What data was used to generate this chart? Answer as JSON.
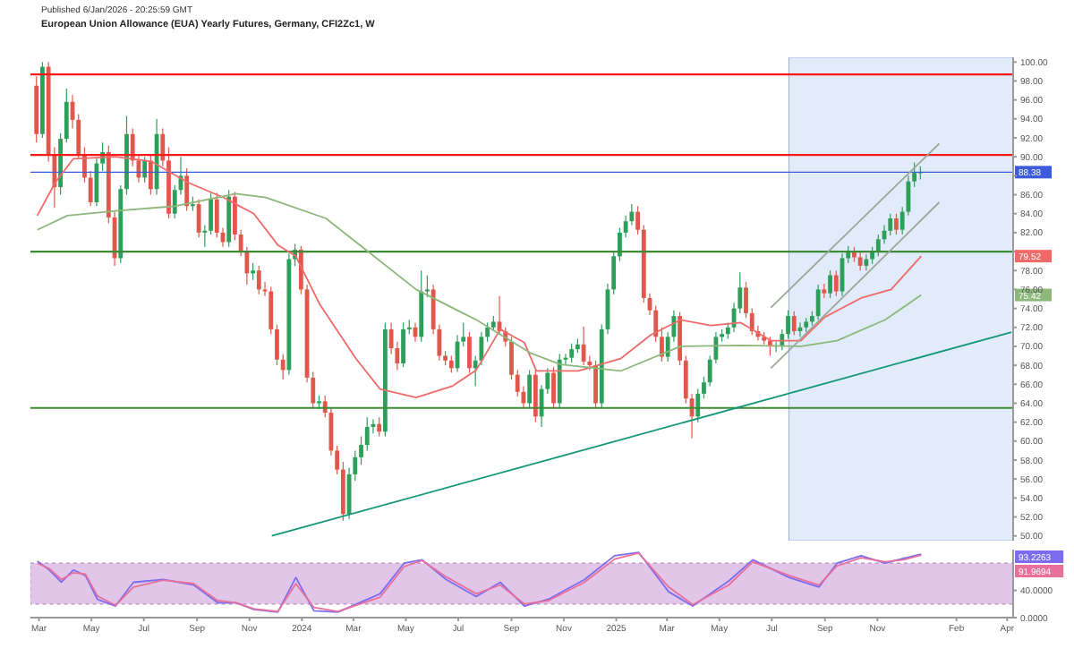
{
  "chart_data": [
    {
      "type": "candlestick",
      "title": "European Union Allowance (EUA) Yearly Futures, Germany, CFI2Zc1, W",
      "x": [
        "2023-02-27",
        "2023-03-06",
        "2023-03-13",
        "2023-03-20",
        "2023-03-27",
        "2023-04-03",
        "2023-04-10",
        "2023-04-17",
        "2023-04-24",
        "2023-05-01",
        "2023-05-08",
        "2023-05-15",
        "2023-05-22",
        "2023-05-29",
        "2023-06-05",
        "2023-06-12",
        "2023-06-19",
        "2023-06-26",
        "2023-07-03",
        "2023-07-10",
        "2023-07-17",
        "2023-07-24",
        "2023-07-31",
        "2023-08-07",
        "2023-08-14",
        "2023-08-21",
        "2023-08-28",
        "2023-09-04",
        "2023-09-11",
        "2023-09-18",
        "2023-09-25",
        "2023-10-02",
        "2023-10-09",
        "2023-10-16",
        "2023-10-23",
        "2023-10-30",
        "2023-11-06",
        "2023-11-13",
        "2023-11-20",
        "2023-11-27",
        "2023-12-04",
        "2023-12-11",
        "2023-12-18",
        "2023-12-25",
        "2024-01-01",
        "2024-01-08",
        "2024-01-15",
        "2024-01-22",
        "2024-01-29",
        "2024-02-05",
        "2024-02-12",
        "2024-02-19",
        "2024-02-26",
        "2024-03-04",
        "2024-03-11",
        "2024-03-18",
        "2024-03-25",
        "2024-04-01",
        "2024-04-08",
        "2024-04-15",
        "2024-04-22",
        "2024-04-29",
        "2024-05-06",
        "2024-05-13",
        "2024-05-20",
        "2024-05-27",
        "2024-06-03",
        "2024-06-10",
        "2024-06-17",
        "2024-06-24",
        "2024-07-01",
        "2024-07-08",
        "2024-07-15",
        "2024-07-22",
        "2024-07-29",
        "2024-08-05",
        "2024-08-12",
        "2024-08-19",
        "2024-08-26",
        "2024-09-02",
        "2024-09-09",
        "2024-09-16",
        "2024-09-23",
        "2024-09-30",
        "2024-10-07",
        "2024-10-14",
        "2024-10-21",
        "2024-10-28",
        "2024-11-04",
        "2024-11-11",
        "2024-11-18",
        "2024-11-25",
        "2024-12-02",
        "2024-12-09",
        "2024-12-16",
        "2024-12-23",
        "2024-12-30",
        "2025-01-06",
        "2025-01-13",
        "2025-01-20",
        "2025-01-27",
        "2025-02-03",
        "2025-02-10",
        "2025-02-17",
        "2025-02-24",
        "2025-03-03",
        "2025-03-10",
        "2025-03-17",
        "2025-03-24",
        "2025-03-31",
        "2025-04-07",
        "2025-04-14",
        "2025-04-21",
        "2025-04-28",
        "2025-05-05",
        "2025-05-12",
        "2025-05-19",
        "2025-05-26",
        "2025-06-02",
        "2025-06-09",
        "2025-06-16",
        "2025-06-23",
        "2025-06-30",
        "2025-07-07",
        "2025-07-14",
        "2025-07-21",
        "2025-07-28",
        "2025-08-04",
        "2025-08-11",
        "2025-08-18",
        "2025-08-25",
        "2025-09-01",
        "2025-09-08",
        "2025-09-15",
        "2025-09-22",
        "2025-09-29",
        "2025-10-06",
        "2025-10-13",
        "2025-10-20",
        "2025-10-27",
        "2025-11-03",
        "2025-11-10",
        "2025-11-17",
        "2025-11-24",
        "2025-12-01",
        "2025-12-08",
        "2025-12-15",
        "2025-12-22"
      ],
      "ohlc": [
        [
          97.5,
          98.5,
          91.5,
          92.4
        ],
        [
          92.4,
          100,
          92,
          99.5
        ],
        [
          99.5,
          100,
          89.5,
          90.2
        ],
        [
          90.2,
          91,
          84.6,
          86.8
        ],
        [
          86.8,
          92.5,
          86,
          91.9
        ],
        [
          91.9,
          97.2,
          91.5,
          95.8
        ],
        [
          95.8,
          96.5,
          93,
          93.9
        ],
        [
          93.9,
          94.5,
          89.8,
          90.2
        ],
        [
          90.2,
          91,
          87.3,
          87.8
        ],
        [
          87.8,
          88.5,
          84.8,
          85.2
        ],
        [
          85.2,
          89.8,
          84.8,
          89.3
        ],
        [
          89.3,
          91.5,
          88.5,
          90.5
        ],
        [
          90.5,
          91.2,
          83,
          83.6
        ],
        [
          83.6,
          84.2,
          78.5,
          79.3
        ],
        [
          79.3,
          87,
          78.8,
          86.6
        ],
        [
          86.6,
          94.3,
          86,
          92.4
        ],
        [
          92.4,
          93,
          89,
          89.6
        ],
        [
          89.6,
          90.3,
          87.3,
          87.8
        ],
        [
          87.8,
          90,
          87.3,
          89.6
        ],
        [
          89.6,
          90.2,
          86,
          86.6
        ],
        [
          86.6,
          94,
          86,
          92.4
        ],
        [
          92.4,
          93,
          89,
          89.6
        ],
        [
          89.6,
          91,
          83.5,
          84
        ],
        [
          84,
          87,
          83.5,
          86.5
        ],
        [
          86.5,
          90,
          86,
          88
        ],
        [
          88,
          88.8,
          84.3,
          84.8
        ],
        [
          84.8,
          85.8,
          84.3,
          85
        ],
        [
          85,
          85.5,
          81.5,
          82
        ],
        [
          82,
          82.8,
          80.5,
          82.2
        ],
        [
          82.2,
          86.2,
          81.8,
          85.5
        ],
        [
          85.5,
          86.2,
          81.5,
          82
        ],
        [
          82,
          82.5,
          80.5,
          81
        ],
        [
          81,
          86.5,
          80.5,
          85.8
        ],
        [
          85.8,
          86.3,
          81.2,
          81.8
        ],
        [
          81.8,
          82.3,
          79.5,
          80
        ],
        [
          80,
          80.5,
          76.5,
          77.7
        ],
        [
          77.7,
          78.8,
          77,
          78
        ],
        [
          78,
          78.5,
          75.5,
          76
        ],
        [
          76,
          76.8,
          75.3,
          75.8
        ],
        [
          75.8,
          76.3,
          71.3,
          71.8
        ],
        [
          71.8,
          72.3,
          68,
          68.6
        ],
        [
          68.6,
          69.2,
          66.5,
          67.5
        ],
        [
          67.5,
          79.8,
          67,
          79.2
        ],
        [
          79.2,
          80.8,
          78.5,
          80.2
        ],
        [
          80.2,
          80.6,
          75.5,
          76
        ],
        [
          76,
          76.5,
          66.2,
          66.7
        ],
        [
          66.7,
          67.3,
          63.5,
          64
        ],
        [
          64,
          64.8,
          63.4,
          64.2
        ],
        [
          64.2,
          64.8,
          62.5,
          63
        ],
        [
          63,
          63.5,
          58.5,
          59
        ],
        [
          59,
          59.5,
          56.5,
          57
        ],
        [
          57,
          57.8,
          51.6,
          52.3
        ],
        [
          52.3,
          57.2,
          51.8,
          56.5
        ],
        [
          56.5,
          59,
          55.8,
          58.3
        ],
        [
          58.3,
          60.5,
          57.5,
          59.6
        ],
        [
          59.6,
          62.5,
          59,
          61.5
        ],
        [
          61.5,
          62.3,
          60.8,
          61.8
        ],
        [
          61.8,
          62.5,
          60.5,
          61
        ],
        [
          61,
          72.5,
          60.5,
          71.8
        ],
        [
          71.8,
          72.5,
          69.2,
          69.8
        ],
        [
          69.8,
          70.5,
          67.5,
          68.2
        ],
        [
          68.2,
          72.5,
          67.8,
          71.8
        ],
        [
          71.8,
          72.8,
          71.3,
          72
        ],
        [
          72,
          72.5,
          70.5,
          71
        ],
        [
          71,
          78,
          70.5,
          75.8
        ],
        [
          75.8,
          77.5,
          75.2,
          76
        ],
        [
          76,
          76.5,
          71.3,
          71.8
        ],
        [
          71.8,
          72.3,
          68.5,
          69
        ],
        [
          69,
          69.5,
          68,
          68.5
        ],
        [
          68.5,
          69,
          67.2,
          67.7
        ],
        [
          67.7,
          71.2,
          67.3,
          70.5
        ],
        [
          70.5,
          72.5,
          70,
          71
        ],
        [
          71,
          71.5,
          67.2,
          67.7
        ],
        [
          67.7,
          69,
          65.8,
          68.5
        ],
        [
          68.5,
          71.5,
          68,
          71
        ],
        [
          71,
          72.5,
          70.5,
          72
        ],
        [
          72,
          73.2,
          71.6,
          72.6
        ],
        [
          72.6,
          75.3,
          71.2,
          71.6
        ],
        [
          71.6,
          72,
          70,
          70.5
        ],
        [
          70.5,
          71,
          66.5,
          67
        ],
        [
          67,
          67.5,
          64.7,
          65.2
        ],
        [
          65.2,
          65.8,
          63.5,
          64
        ],
        [
          64,
          67.5,
          63.5,
          67
        ],
        [
          67,
          67.5,
          62,
          62.6
        ],
        [
          62.6,
          65.9,
          61.5,
          65.5
        ],
        [
          65.5,
          67.7,
          65,
          67.2
        ],
        [
          67.2,
          67.8,
          63.5,
          64
        ],
        [
          64,
          69.2,
          63.5,
          68.6
        ],
        [
          68.6,
          69.2,
          68,
          68.8
        ],
        [
          68.8,
          70.3,
          68.3,
          69.7
        ],
        [
          69.7,
          70.8,
          69.3,
          70.2
        ],
        [
          70.2,
          72.1,
          68,
          68.4
        ],
        [
          68.4,
          69,
          67.5,
          68
        ],
        [
          68,
          68.5,
          63.5,
          64
        ],
        [
          64,
          72.3,
          63.5,
          71.8
        ],
        [
          71.8,
          76.6,
          71.3,
          76
        ],
        [
          76,
          80,
          75.5,
          79.5
        ],
        [
          79.5,
          82.5,
          79,
          82
        ],
        [
          82,
          83.8,
          81.5,
          83.2
        ],
        [
          83.2,
          85,
          82.8,
          84.2
        ],
        [
          84.2,
          84.8,
          81.8,
          82.3
        ],
        [
          82.3,
          82.8,
          74.6,
          75.1
        ],
        [
          75.1,
          75.6,
          73.3,
          73.8
        ],
        [
          73.8,
          74.3,
          70.5,
          71
        ],
        [
          71,
          72,
          68.4,
          68.9
        ],
        [
          68.9,
          71.5,
          68.4,
          71
        ],
        [
          71,
          73.8,
          70.5,
          73.2
        ],
        [
          73.2,
          73.6,
          68,
          68.5
        ],
        [
          68.5,
          69,
          64,
          64.5
        ],
        [
          64.5,
          65,
          60.3,
          62.6
        ],
        [
          62.6,
          65.5,
          62,
          65
        ],
        [
          65,
          66.8,
          64.5,
          66.2
        ],
        [
          66.2,
          69,
          65.8,
          68.6
        ],
        [
          68.6,
          71.5,
          68.2,
          71
        ],
        [
          71,
          71.8,
          70.5,
          71.3
        ],
        [
          71.3,
          72.5,
          70.8,
          72
        ],
        [
          72,
          74.6,
          71.5,
          74
        ],
        [
          74,
          77.8,
          73.5,
          76.2
        ],
        [
          76.2,
          76.8,
          73,
          73.5
        ],
        [
          73.5,
          74,
          71.2,
          71.6
        ],
        [
          71.6,
          72.2,
          70.6,
          71
        ],
        [
          71,
          71.5,
          70.2,
          70.6
        ],
        [
          70.6,
          71,
          69,
          70
        ],
        [
          70,
          70.5,
          69.4,
          70.1
        ],
        [
          70.1,
          71.8,
          69.6,
          71.3
        ],
        [
          71.3,
          73.8,
          70.8,
          73.2
        ],
        [
          73.2,
          73.7,
          71.2,
          71.6
        ],
        [
          71.6,
          72.5,
          71,
          72
        ],
        [
          72,
          73,
          71.5,
          72.6
        ],
        [
          72.6,
          73.7,
          72.2,
          73.2
        ],
        [
          73.2,
          76.5,
          72.8,
          76
        ],
        [
          76,
          76.6,
          75.1,
          75.6
        ],
        [
          75.6,
          78,
          75.1,
          77.5
        ],
        [
          77.5,
          78,
          75.3,
          75.8
        ],
        [
          75.8,
          79.8,
          75.3,
          79.3
        ],
        [
          79.3,
          80.6,
          78.8,
          80
        ],
        [
          80,
          80.5,
          78.9,
          79.4
        ],
        [
          79.4,
          79.9,
          78,
          78.5
        ],
        [
          78.5,
          79.7,
          78,
          79.2
        ],
        [
          79.2,
          80.5,
          78.7,
          80
        ],
        [
          80,
          81.8,
          79.5,
          81.3
        ],
        [
          81.3,
          82.8,
          80.8,
          82.2
        ],
        [
          82.2,
          84,
          81.7,
          83.5
        ],
        [
          83.5,
          84,
          81.8,
          82.3
        ],
        [
          82.3,
          84.7,
          81.8,
          84.2
        ],
        [
          84.2,
          88,
          83.8,
          87.4
        ],
        [
          87.4,
          89.4,
          86.8,
          88.3
        ],
        [
          88.3,
          89,
          87.6,
          88.38
        ]
      ],
      "series": [
        {
          "type": "line",
          "color": "#f06a6a",
          "x": [
            "2023-02-27",
            "2023-03-20",
            "2023-04-10",
            "2023-05-29",
            "2023-07-10",
            "2023-08-21",
            "2023-10-02",
            "2023-11-06",
            "2023-12-04",
            "2023-12-25",
            "2024-01-22",
            "2024-03-04",
            "2024-04-01",
            "2024-05-13",
            "2024-06-24",
            "2024-07-22",
            "2024-08-19",
            "2024-09-16",
            "2024-09-30",
            "2024-11-18",
            "2025-01-06",
            "2025-02-10",
            "2025-03-17",
            "2025-04-21",
            "2025-05-26",
            "2025-06-30",
            "2025-08-04",
            "2025-09-01",
            "2025-10-13",
            "2025-11-17",
            "2025-12-22"
          ],
          "values": [
            83.8,
            87.3,
            89.8,
            90,
            89.5,
            87.3,
            85.7,
            84,
            80.7,
            79.5,
            74.4,
            68.7,
            65.5,
            64.6,
            65.8,
            67.5,
            71.8,
            70.4,
            67.4,
            67.4,
            68.7,
            71.2,
            72.8,
            72.2,
            72.5,
            70.6,
            70.6,
            73.1,
            75.1,
            76,
            79.52
          ]
        },
        {
          "type": "line",
          "color": "#8cb87c",
          "x": [
            "2023-02-27",
            "2023-04-03",
            "2023-05-29",
            "2023-08-07",
            "2023-10-16",
            "2023-11-20",
            "2024-01-29",
            "2024-03-18",
            "2024-05-13",
            "2024-07-22",
            "2024-09-23",
            "2024-10-28",
            "2025-01-06",
            "2025-03-17",
            "2025-05-26",
            "2025-08-04",
            "2025-09-15",
            "2025-11-10",
            "2025-12-22"
          ],
          "values": [
            82.3,
            83.8,
            84.3,
            84.8,
            86.1,
            85.7,
            83.5,
            80,
            76,
            72.8,
            69.3,
            68.1,
            67.4,
            70,
            70.1,
            70,
            70.6,
            72.8,
            75.42
          ]
        },
        {
          "type": "line",
          "color": "#9aa89a",
          "x": [
            "2025-06-30",
            "2026-01-12"
          ],
          "values": [
            74.1,
            91.4
          ]
        },
        {
          "type": "line",
          "color": "#9aa89a",
          "x": [
            "2025-06-30",
            "2026-01-12"
          ],
          "values": [
            67.7,
            85.2
          ]
        },
        {
          "type": "line",
          "color": "#13977a",
          "x": [
            "2023-11-27",
            "2026-04-06"
          ],
          "values": [
            50,
            71.5
          ]
        }
      ],
      "xlim": [
        "2023-02-19",
        "2026-04-08"
      ],
      "ylim": [
        49.5,
        100.5
      ],
      "yticks": [
        {
          "value": 50,
          "label": "50.00"
        },
        {
          "value": 52,
          "label": "52.00"
        },
        {
          "value": 54,
          "label": "54.00"
        },
        {
          "value": 56,
          "label": "56.00"
        },
        {
          "value": 58,
          "label": "58.00"
        },
        {
          "value": 60,
          "label": "60.00"
        },
        {
          "value": 62,
          "label": "62.00"
        },
        {
          "value": 64,
          "label": "64.00"
        },
        {
          "value": 66,
          "label": "66.00"
        },
        {
          "value": 68,
          "label": "68.00"
        },
        {
          "value": 70,
          "label": "70.00"
        },
        {
          "value": 72,
          "label": "72.00"
        },
        {
          "value": 74,
          "label": "74.00"
        },
        {
          "value": 76,
          "label": "76.00"
        },
        {
          "value": 78,
          "label": "78.00"
        },
        {
          "value": 80,
          "label": null
        },
        {
          "value": 82,
          "label": "82.00"
        },
        {
          "value": 84,
          "label": "84.00"
        },
        {
          "value": 86,
          "label": "86.00"
        },
        {
          "value": 88,
          "label": null
        },
        {
          "value": 90,
          "label": "90.00"
        },
        {
          "value": 92,
          "label": "92.00"
        },
        {
          "value": 94,
          "label": "94.00"
        },
        {
          "value": 96,
          "label": "96.00"
        },
        {
          "value": 98,
          "label": "98.00"
        },
        {
          "value": 100,
          "label": "100.00"
        }
      ],
      "tick_labels": "y",
      "ref_lines": [
        {
          "axis": "y",
          "value": 98.7,
          "color": "#ff1a1a"
        },
        {
          "axis": "y",
          "value": 90.2,
          "color": "#ff1a1a"
        },
        {
          "axis": "y",
          "value": 88.38,
          "label": "88.38",
          "color": "#3b5bdb"
        },
        {
          "axis": "y",
          "value": 80,
          "color": "#3d8b37"
        },
        {
          "axis": "y",
          "value": 63.5,
          "color": "#3d8b37"
        }
      ],
      "bands": [
        {
          "axis": "x",
          "from": "2025-07-21",
          "to": "2026-04-08",
          "color": "#dde8f8"
        }
      ],
      "annotations": [
        "Published 6/Jan/2026 - 20:25:59 GMT",
        {
          "text": "79.52",
          "x": "2026-04-08",
          "y": 79.52
        },
        {
          "text": "75.42",
          "x": "2026-04-08",
          "y": 75.42
        }
      ]
    },
    {
      "type": "line",
      "x": [
        "2023-02-27",
        "2023-03-13",
        "2023-03-27",
        "2023-04-10",
        "2023-04-24",
        "2023-05-08",
        "2023-05-29",
        "2023-06-19",
        "2023-07-24",
        "2023-08-28",
        "2023-09-25",
        "2023-10-16",
        "2023-11-06",
        "2023-12-04",
        "2023-12-25",
        "2024-01-15",
        "2024-02-12",
        "2024-04-01",
        "2024-04-29",
        "2024-05-20",
        "2024-06-17",
        "2024-07-22",
        "2024-08-19",
        "2024-09-16",
        "2024-10-14",
        "2024-11-25",
        "2024-12-30",
        "2025-01-27",
        "2025-03-03",
        "2025-03-31",
        "2025-05-12",
        "2025-06-09",
        "2025-07-21",
        "2025-08-25",
        "2025-09-15",
        "2025-10-13",
        "2025-11-10",
        "2025-12-01",
        "2025-12-22"
      ],
      "series": [
        {
          "color": "#7b6cf0",
          "values": [
            83,
            70,
            52,
            70,
            62,
            27,
            17,
            52,
            56,
            48,
            22,
            22,
            12,
            8,
            59,
            10,
            8,
            35,
            80,
            85,
            56,
            31,
            52,
            17,
            27,
            56,
            91,
            96,
            38,
            17,
            54,
            85,
            59,
            45,
            80,
            91,
            80,
            87,
            93.2263
          ]
        },
        {
          "color": "#e8709a",
          "values": [
            80,
            72,
            56,
            66,
            64,
            32,
            18,
            45,
            55,
            50,
            25,
            22,
            13,
            9,
            50,
            15,
            9,
            30,
            75,
            84,
            60,
            35,
            48,
            20,
            25,
            52,
            86,
            95,
            45,
            19,
            48,
            82,
            62,
            48,
            76,
            88,
            82,
            85,
            91.9694
          ]
        }
      ],
      "xlim": [
        "2023-02-19",
        "2026-04-08"
      ],
      "xticks": [
        {
          "value": "2023-03-01",
          "label": "Mar"
        },
        {
          "value": "2023-05-01",
          "label": "May"
        },
        {
          "value": "2023-07-01",
          "label": "Jul"
        },
        {
          "value": "2023-09-01",
          "label": "Sep"
        },
        {
          "value": "2023-11-01",
          "label": "Nov"
        },
        {
          "value": "2024-01-01",
          "label": "2024"
        },
        {
          "value": "2024-03-01",
          "label": "Mar"
        },
        {
          "value": "2024-05-01",
          "label": "May"
        },
        {
          "value": "2024-07-01",
          "label": "Jul"
        },
        {
          "value": "2024-09-01",
          "label": "Sep"
        },
        {
          "value": "2024-11-01",
          "label": "Nov"
        },
        {
          "value": "2025-01-01",
          "label": "2025"
        },
        {
          "value": "2025-03-01",
          "label": "Mar"
        },
        {
          "value": "2025-05-01",
          "label": "May"
        },
        {
          "value": "2025-07-01",
          "label": "Jul"
        },
        {
          "value": "2025-09-01",
          "label": "Sep"
        },
        {
          "value": "2025-11-01",
          "label": "Nov"
        },
        {
          "value": "2026-02-01",
          "label": "Feb"
        },
        {
          "value": "2026-04-01",
          "label": "Apr"
        }
      ],
      "ylim": [
        0,
        100
      ],
      "yticks": [
        {
          "value": 0,
          "label": "0.0000"
        },
        {
          "value": 40,
          "label": "40.0000"
        }
      ],
      "bands": [
        {
          "axis": "y",
          "from": 20,
          "to": 80,
          "color": "#dcbce6"
        }
      ],
      "annotations": [
        "93.2263",
        "91.9694"
      ]
    }
  ]
}
